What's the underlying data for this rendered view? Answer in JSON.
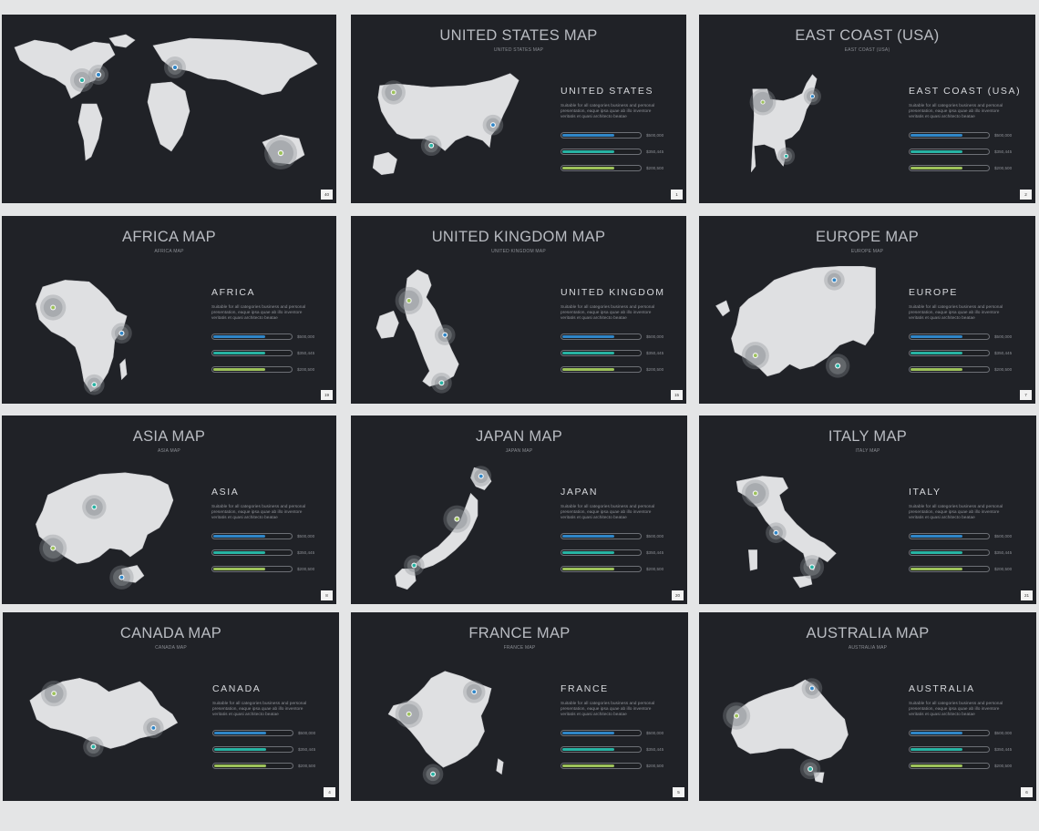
{
  "slides": [
    {
      "id": "world",
      "title": "",
      "subtitle": "",
      "region": "",
      "page": "40"
    },
    {
      "id": "us",
      "title": "UNITED  STATES MAP",
      "subtitle": "UNITED  STATES MAP",
      "region": "UNITED  STATES",
      "page": "1"
    },
    {
      "id": "eastcoast",
      "title": "EAST COAST (USA)",
      "subtitle": "EAST COAST (USA)",
      "region": "EAST COAST (USA)",
      "page": "2"
    },
    {
      "id": "africa",
      "title": "AFRICA MAP",
      "subtitle": "AFRICA MAP",
      "region": "AFRICA",
      "page": "19"
    },
    {
      "id": "uk",
      "title": "UNITED KINGDOM MAP",
      "subtitle": "UNITED KINGDOM MAP",
      "region": "UNITED KINGDOM",
      "page": "15"
    },
    {
      "id": "europe",
      "title": "EUROPE MAP",
      "subtitle": "EUROPE MAP",
      "region": "EUROPE",
      "page": "7"
    },
    {
      "id": "asia",
      "title": "ASIA MAP",
      "subtitle": "ASIA MAP",
      "region": "ASIA",
      "page": "8"
    },
    {
      "id": "japan",
      "title": "JAPAN MAP",
      "subtitle": "JAPAN MAP",
      "region": "JAPAN",
      "page": "20"
    },
    {
      "id": "italy",
      "title": "ITALY MAP",
      "subtitle": "ITALY MAP",
      "region": "ITALY",
      "page": "21"
    },
    {
      "id": "canada",
      "title": "CANADA MAP",
      "subtitle": "CANADA MAP",
      "region": "CANADA",
      "page": "4"
    },
    {
      "id": "france",
      "title": "FRANCE MAP",
      "subtitle": "FRANCE MAP",
      "region": "FRANCE",
      "page": "5"
    },
    {
      "id": "australia",
      "title": "AUSTRALIA MAP",
      "subtitle": "AUSTRALIA MAP",
      "region": "AUSTRALIA",
      "page": "6"
    }
  ],
  "description": "Suitable for all categories business and personal presentation, eaque ipsa quae ab illo inventore veritatis et quasi architecto beatae",
  "bars": [
    {
      "value": "$500,000",
      "color": "#2f86c8",
      "fill_fraction": 0.66
    },
    {
      "value": "$350,445",
      "color": "#27b3a3",
      "fill_fraction": 0.66
    },
    {
      "value": "$200,500",
      "color": "#9dc25a",
      "fill_fraction": 0.66
    }
  ],
  "colors": {
    "background": "#202227",
    "land": "#dfe0e2",
    "blue": "#2f86c8",
    "teal": "#27b3a3",
    "green": "#9dc25a"
  }
}
